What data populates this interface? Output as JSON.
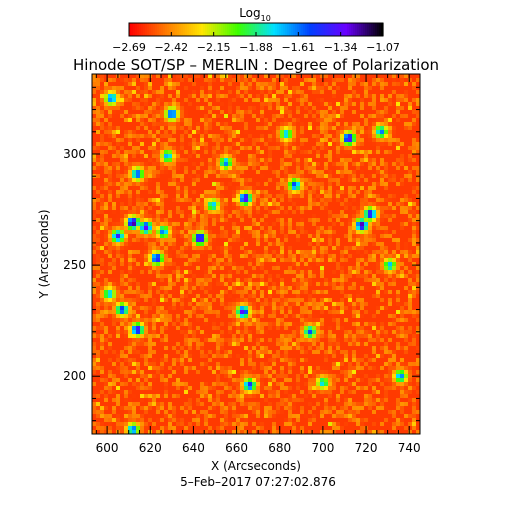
{
  "chart_data": {
    "type": "heatmap",
    "title": "Hinode SOT/SP – MERLIN : Degree of Polarization",
    "xlabel": "X (Arcseconds)",
    "ylabel": "Y (Arcseconds)",
    "timestamp": "5–Feb–2017 07:27:02.876",
    "xlim": [
      593,
      745
    ],
    "ylim": [
      174,
      336
    ],
    "xticks": [
      {
        "value": 600,
        "label": "600"
      },
      {
        "value": 620,
        "label": "620"
      },
      {
        "value": 640,
        "label": "640"
      },
      {
        "value": 660,
        "label": "660"
      },
      {
        "value": 680,
        "label": "680"
      },
      {
        "value": 700,
        "label": "700"
      },
      {
        "value": 720,
        "label": "720"
      },
      {
        "value": 740,
        "label": "740"
      }
    ],
    "yticks": [
      {
        "value": 200,
        "label": "200"
      },
      {
        "value": 250,
        "label": "250"
      },
      {
        "value": 300,
        "label": "300"
      }
    ],
    "colorbar": {
      "label_base": "Log",
      "label_sub": "10",
      "range": [
        -2.69,
        -1.07
      ],
      "ticks": [
        "−2.69",
        "−2.42",
        "−2.15",
        "−1.88",
        "−1.61",
        "−1.34",
        "−1.07"
      ],
      "colors": [
        "#ff0000",
        "#ff7a00",
        "#ffe600",
        "#3cff00",
        "#00e0ff",
        "#0040ff",
        "#6a00ff",
        "#000000"
      ]
    },
    "background_level": -2.58,
    "background_variation": 0.18,
    "features": [
      {
        "x": 602,
        "y": 325,
        "level": -1.55
      },
      {
        "x": 630,
        "y": 318,
        "level": -1.45
      },
      {
        "x": 614,
        "y": 291,
        "level": -1.5
      },
      {
        "x": 605,
        "y": 263,
        "level": -1.4
      },
      {
        "x": 612,
        "y": 269,
        "level": -1.15
      },
      {
        "x": 618,
        "y": 267,
        "level": -1.3
      },
      {
        "x": 623,
        "y": 253,
        "level": -1.35
      },
      {
        "x": 626,
        "y": 265,
        "level": -1.6
      },
      {
        "x": 643,
        "y": 262,
        "level": -1.2
      },
      {
        "x": 649,
        "y": 277,
        "level": -1.7
      },
      {
        "x": 655,
        "y": 296,
        "level": -1.6
      },
      {
        "x": 664,
        "y": 280,
        "level": -1.25
      },
      {
        "x": 663,
        "y": 229,
        "level": -1.3
      },
      {
        "x": 666,
        "y": 196,
        "level": -1.45
      },
      {
        "x": 687,
        "y": 286,
        "level": -1.5
      },
      {
        "x": 683,
        "y": 309,
        "level": -1.7
      },
      {
        "x": 694,
        "y": 220,
        "level": -1.55
      },
      {
        "x": 712,
        "y": 307,
        "level": -1.25
      },
      {
        "x": 718,
        "y": 268,
        "level": -1.2
      },
      {
        "x": 722,
        "y": 273,
        "level": -1.35
      },
      {
        "x": 727,
        "y": 310,
        "level": -1.6
      },
      {
        "x": 731,
        "y": 250,
        "level": -1.7
      },
      {
        "x": 736,
        "y": 200,
        "level": -1.6
      },
      {
        "x": 607,
        "y": 230,
        "level": -1.45
      },
      {
        "x": 614,
        "y": 221,
        "level": -1.3
      },
      {
        "x": 628,
        "y": 299,
        "level": -1.65
      },
      {
        "x": 700,
        "y": 197,
        "level": -1.75
      },
      {
        "x": 601,
        "y": 237,
        "level": -1.7
      },
      {
        "x": 612,
        "y": 176,
        "level": -1.55
      }
    ]
  }
}
